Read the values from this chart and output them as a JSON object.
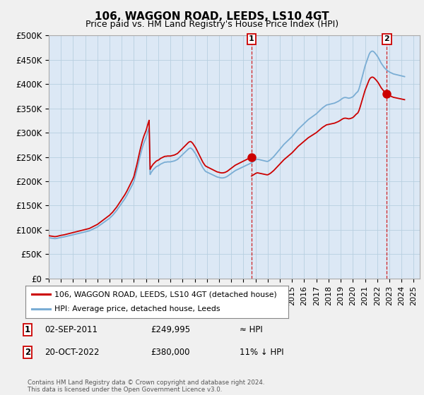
{
  "title": "106, WAGGON ROAD, LEEDS, LS10 4GT",
  "subtitle": "Price paid vs. HM Land Registry's House Price Index (HPI)",
  "ylabel_ticks": [
    "£0",
    "£50K",
    "£100K",
    "£150K",
    "£200K",
    "£250K",
    "£300K",
    "£350K",
    "£400K",
    "£450K",
    "£500K"
  ],
  "ytick_values": [
    0,
    50000,
    100000,
    150000,
    200000,
    250000,
    300000,
    350000,
    400000,
    450000,
    500000
  ],
  "ylim": [
    0,
    500000
  ],
  "xlim_start": 1995.0,
  "xlim_end": 2025.5,
  "hpi_color": "#7aadd4",
  "price_color": "#cc0000",
  "bg_color": "#f0f0f0",
  "plot_bg": "#dce8f5",
  "grid_color": "#b8cfe0",
  "legend_label_price": "106, WAGGON ROAD, LEEDS, LS10 4GT (detached house)",
  "legend_label_hpi": "HPI: Average price, detached house, Leeds",
  "annotation1_label": "1",
  "annotation1_date": "02-SEP-2011",
  "annotation1_price": "£249,995",
  "annotation1_note": "≈ HPI",
  "annotation2_label": "2",
  "annotation2_date": "20-OCT-2022",
  "annotation2_price": "£380,000",
  "annotation2_note": "11% ↓ HPI",
  "footer": "Contains HM Land Registry data © Crown copyright and database right 2024.\nThis data is licensed under the Open Government Licence v3.0.",
  "sale1_x": 2011.67,
  "sale1_y": 249995,
  "sale2_x": 2022.79,
  "sale2_y": 380000,
  "hpi_x": [
    1995.0,
    1995.083,
    1995.167,
    1995.25,
    1995.333,
    1995.417,
    1995.5,
    1995.583,
    1995.667,
    1995.75,
    1995.833,
    1995.917,
    1996.0,
    1996.083,
    1996.167,
    1996.25,
    1996.333,
    1996.417,
    1996.5,
    1996.583,
    1996.667,
    1996.75,
    1996.833,
    1996.917,
    1997.0,
    1997.083,
    1997.167,
    1997.25,
    1997.333,
    1997.417,
    1997.5,
    1997.583,
    1997.667,
    1997.75,
    1997.833,
    1997.917,
    1998.0,
    1998.083,
    1998.167,
    1998.25,
    1998.333,
    1998.417,
    1998.5,
    1998.583,
    1998.667,
    1998.75,
    1998.833,
    1998.917,
    1999.0,
    1999.083,
    1999.167,
    1999.25,
    1999.333,
    1999.417,
    1999.5,
    1999.583,
    1999.667,
    1999.75,
    1999.833,
    1999.917,
    2000.0,
    2000.083,
    2000.167,
    2000.25,
    2000.333,
    2000.417,
    2000.5,
    2000.583,
    2000.667,
    2000.75,
    2000.833,
    2000.917,
    2001.0,
    2001.083,
    2001.167,
    2001.25,
    2001.333,
    2001.417,
    2001.5,
    2001.583,
    2001.667,
    2001.75,
    2001.833,
    2001.917,
    2002.0,
    2002.083,
    2002.167,
    2002.25,
    2002.333,
    2002.417,
    2002.5,
    2002.583,
    2002.667,
    2002.75,
    2002.833,
    2002.917,
    2003.0,
    2003.083,
    2003.167,
    2003.25,
    2003.333,
    2003.417,
    2003.5,
    2003.583,
    2003.667,
    2003.75,
    2003.833,
    2003.917,
    2004.0,
    2004.083,
    2004.167,
    2004.25,
    2004.333,
    2004.417,
    2004.5,
    2004.583,
    2004.667,
    2004.75,
    2004.833,
    2004.917,
    2005.0,
    2005.083,
    2005.167,
    2005.25,
    2005.333,
    2005.417,
    2005.5,
    2005.583,
    2005.667,
    2005.75,
    2005.833,
    2005.917,
    2006.0,
    2006.083,
    2006.167,
    2006.25,
    2006.333,
    2006.417,
    2006.5,
    2006.583,
    2006.667,
    2006.75,
    2006.833,
    2006.917,
    2007.0,
    2007.083,
    2007.167,
    2007.25,
    2007.333,
    2007.417,
    2007.5,
    2007.583,
    2007.667,
    2007.75,
    2007.833,
    2007.917,
    2008.0,
    2008.083,
    2008.167,
    2008.25,
    2008.333,
    2008.417,
    2008.5,
    2008.583,
    2008.667,
    2008.75,
    2008.833,
    2008.917,
    2009.0,
    2009.083,
    2009.167,
    2009.25,
    2009.333,
    2009.417,
    2009.5,
    2009.583,
    2009.667,
    2009.75,
    2009.833,
    2009.917,
    2010.0,
    2010.083,
    2010.167,
    2010.25,
    2010.333,
    2010.417,
    2010.5,
    2010.583,
    2010.667,
    2010.75,
    2010.833,
    2010.917,
    2011.0,
    2011.083,
    2011.167,
    2011.25,
    2011.333,
    2011.417,
    2011.5,
    2011.583,
    2011.667,
    2011.75,
    2011.833,
    2011.917,
    2012.0,
    2012.083,
    2012.167,
    2012.25,
    2012.333,
    2012.417,
    2012.5,
    2012.583,
    2012.667,
    2012.75,
    2012.833,
    2012.917,
    2013.0,
    2013.083,
    2013.167,
    2013.25,
    2013.333,
    2013.417,
    2013.5,
    2013.583,
    2013.667,
    2013.75,
    2013.833,
    2013.917,
    2014.0,
    2014.083,
    2014.167,
    2014.25,
    2014.333,
    2014.417,
    2014.5,
    2014.583,
    2014.667,
    2014.75,
    2014.833,
    2014.917,
    2015.0,
    2015.083,
    2015.167,
    2015.25,
    2015.333,
    2015.417,
    2015.5,
    2015.583,
    2015.667,
    2015.75,
    2015.833,
    2015.917,
    2016.0,
    2016.083,
    2016.167,
    2016.25,
    2016.333,
    2016.417,
    2016.5,
    2016.583,
    2016.667,
    2016.75,
    2016.833,
    2016.917,
    2017.0,
    2017.083,
    2017.167,
    2017.25,
    2017.333,
    2017.417,
    2017.5,
    2017.583,
    2017.667,
    2017.75,
    2017.833,
    2017.917,
    2018.0,
    2018.083,
    2018.167,
    2018.25,
    2018.333,
    2018.417,
    2018.5,
    2018.583,
    2018.667,
    2018.75,
    2018.833,
    2018.917,
    2019.0,
    2019.083,
    2019.167,
    2019.25,
    2019.333,
    2019.417,
    2019.5,
    2019.583,
    2019.667,
    2019.75,
    2019.833,
    2019.917,
    2020.0,
    2020.083,
    2020.167,
    2020.25,
    2020.333,
    2020.417,
    2020.5,
    2020.583,
    2020.667,
    2020.75,
    2020.833,
    2020.917,
    2021.0,
    2021.083,
    2021.167,
    2021.25,
    2021.333,
    2021.417,
    2021.5,
    2021.583,
    2021.667,
    2021.75,
    2021.833,
    2021.917,
    2022.0,
    2022.083,
    2022.167,
    2022.25,
    2022.333,
    2022.417,
    2022.5,
    2022.583,
    2022.667,
    2022.75,
    2022.833,
    2022.917,
    2023.0,
    2023.083,
    2023.167,
    2023.25,
    2023.333,
    2023.417,
    2023.5,
    2023.583,
    2023.667,
    2023.75,
    2023.833,
    2023.917,
    2024.0,
    2024.083,
    2024.167,
    2024.25
  ],
  "hpi_y": [
    84000,
    83500,
    83200,
    82800,
    82500,
    82200,
    82000,
    82200,
    82500,
    83000,
    83500,
    84000,
    84500,
    84800,
    85000,
    85500,
    86000,
    86500,
    87000,
    87500,
    88000,
    88500,
    89000,
    89500,
    90000,
    90500,
    91000,
    91500,
    92000,
    92500,
    93000,
    93500,
    94000,
    94500,
    95000,
    95500,
    96000,
    96500,
    97000,
    97500,
    98000,
    99000,
    100000,
    101000,
    102000,
    103000,
    104000,
    105000,
    106000,
    107500,
    109000,
    110500,
    112000,
    113500,
    115000,
    116500,
    118000,
    119500,
    121000,
    122500,
    124000,
    126000,
    128000,
    130000,
    132500,
    135000,
    137500,
    140000,
    143000,
    146000,
    149000,
    152000,
    155000,
    158000,
    161000,
    164000,
    167500,
    171000,
    175000,
    179000,
    183000,
    187000,
    191000,
    195000,
    200000,
    208000,
    216000,
    224000,
    233000,
    242000,
    251000,
    259000,
    267000,
    274000,
    280000,
    285000,
    290000,
    297000,
    304000,
    310000,
    214000,
    218000,
    221000,
    224000,
    226000,
    228000,
    230000,
    231000,
    232000,
    233000,
    235000,
    236000,
    237000,
    238000,
    239000,
    239500,
    239500,
    240000,
    240000,
    240000,
    240000,
    240500,
    241000,
    241500,
    242000,
    243000,
    244000,
    245000,
    247000,
    249000,
    251000,
    253000,
    255000,
    257000,
    259000,
    261000,
    263000,
    265000,
    267000,
    268000,
    268500,
    267000,
    265000,
    262000,
    259000,
    256000,
    252000,
    248000,
    244000,
    240000,
    236000,
    232000,
    228000,
    225000,
    222000,
    220000,
    219000,
    218000,
    217000,
    216000,
    215000,
    214000,
    213000,
    212000,
    211000,
    210000,
    209000,
    208500,
    208000,
    207500,
    207000,
    207000,
    207000,
    207500,
    208000,
    209000,
    210000,
    211500,
    213000,
    214500,
    216000,
    217500,
    219000,
    220500,
    222000,
    223000,
    224000,
    225000,
    226000,
    227000,
    228000,
    229000,
    230000,
    231000,
    232000,
    233000,
    234000,
    235000,
    236000,
    237000,
    238000,
    239500,
    241000,
    242500,
    244000,
    245000,
    245500,
    245000,
    244500,
    244000,
    243500,
    243000,
    242500,
    242000,
    241500,
    241000,
    241000,
    242000,
    243500,
    245000,
    247000,
    249000,
    251000,
    253500,
    256000,
    258500,
    261000,
    263500,
    266000,
    268500,
    271000,
    273500,
    276000,
    278000,
    280000,
    282000,
    284000,
    286000,
    288000,
    290000,
    292000,
    294500,
    297000,
    299500,
    302000,
    304500,
    307000,
    309000,
    311000,
    313000,
    315000,
    317000,
    319000,
    321000,
    323000,
    325000,
    327000,
    328500,
    330000,
    331500,
    333000,
    334500,
    336000,
    337500,
    339000,
    341000,
    343000,
    345000,
    347000,
    349000,
    351000,
    352500,
    354000,
    355500,
    357000,
    357500,
    358000,
    358500,
    359000,
    359500,
    360000,
    360500,
    361000,
    362000,
    363000,
    364000,
    365000,
    366500,
    368000,
    369500,
    371000,
    372000,
    372500,
    372500,
    372000,
    371500,
    371000,
    371500,
    372000,
    373000,
    374000,
    376000,
    378500,
    381000,
    383000,
    385000,
    390000,
    397000,
    405000,
    413000,
    421000,
    429000,
    437000,
    443000,
    449000,
    455000,
    461000,
    465000,
    467000,
    468000,
    467500,
    466000,
    463500,
    461000,
    458000,
    455000,
    451000,
    447000,
    443000,
    440000,
    437000,
    434000,
    432000,
    430000,
    428000,
    426500,
    425000,
    424000,
    423000,
    422000,
    421000,
    420500,
    420000,
    419500,
    419000,
    418500,
    418000,
    417500,
    417000,
    416500,
    416000,
    415500
  ],
  "xtick_years": [
    1995,
    1996,
    1997,
    1998,
    1999,
    2000,
    2001,
    2002,
    2003,
    2004,
    2005,
    2006,
    2007,
    2008,
    2009,
    2010,
    2011,
    2012,
    2013,
    2014,
    2015,
    2016,
    2017,
    2018,
    2019,
    2020,
    2021,
    2022,
    2023,
    2024,
    2025
  ]
}
